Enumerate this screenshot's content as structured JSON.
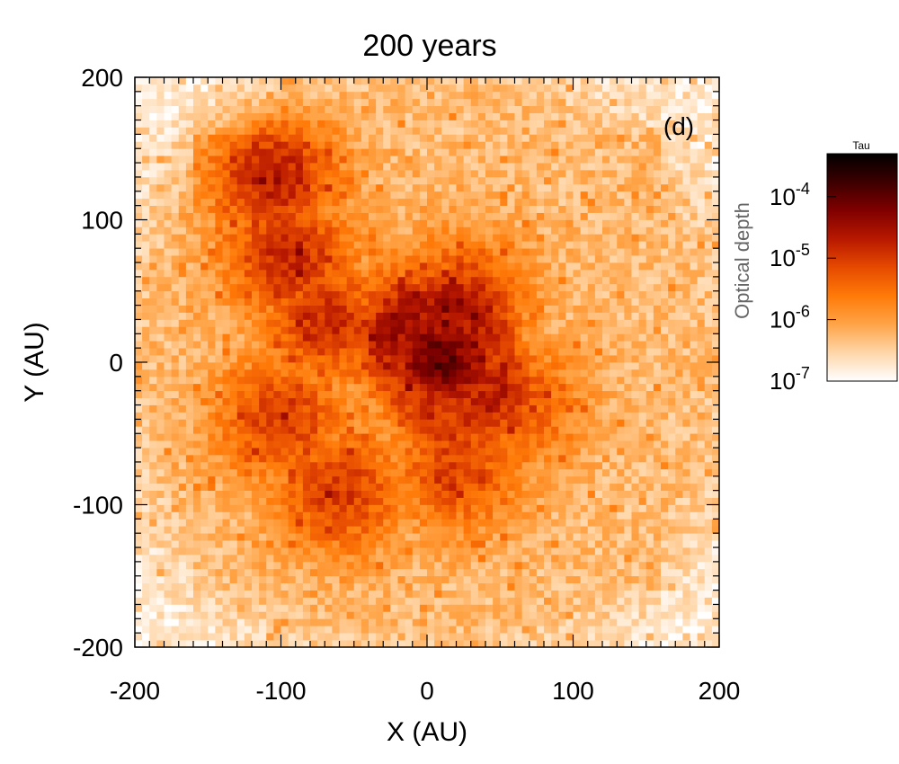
{
  "chart_data": {
    "type": "heatmap",
    "title": "200 years",
    "panel_label": "(d)",
    "xlabel": "X (AU)",
    "ylabel": "Y (AU)",
    "xlim": [
      -200,
      200
    ],
    "ylim": [
      -200,
      200
    ],
    "x_ticks": [
      -200,
      -100,
      0,
      100,
      200
    ],
    "y_ticks": [
      -200,
      -100,
      0,
      100,
      200
    ],
    "colorbar": {
      "title": "Tau",
      "label": "Optical depth",
      "scale": "log",
      "range": [
        1e-07,
        0.0005
      ],
      "ticks": [
        {
          "value": 1e-07,
          "base": "10",
          "exp": "-7"
        },
        {
          "value": 1e-06,
          "base": "10",
          "exp": "-6"
        },
        {
          "value": 1e-05,
          "base": "10",
          "exp": "-5"
        },
        {
          "value": 0.0001,
          "base": "10",
          "exp": "-4"
        }
      ]
    },
    "colormap": [
      "#ffffff",
      "#ffd6a8",
      "#ffa447",
      "#ff7a08",
      "#e64a00",
      "#b81800",
      "#800000",
      "#3c0000",
      "#000000"
    ],
    "grid": false,
    "log10_tau_features": {
      "background": -6.3,
      "central_core": {
        "x": 10,
        "y": 0,
        "peak": -4.0
      },
      "inner_ring_radius": 45,
      "spiral_arm": [
        {
          "x": 25,
          "y": 45,
          "value": -5.0
        },
        {
          "x": -20,
          "y": 30,
          "value": -5.0
        },
        {
          "x": -70,
          "y": 30,
          "value": -4.9
        },
        {
          "x": -95,
          "y": 75,
          "value": -4.8
        },
        {
          "x": -105,
          "y": 130,
          "value": -4.7
        },
        {
          "x": -100,
          "y": -40,
          "value": -5.0
        },
        {
          "x": -60,
          "y": -90,
          "value": -5.0
        },
        {
          "x": 20,
          "y": -75,
          "value": -5.1
        },
        {
          "x": 60,
          "y": -30,
          "value": -5.2
        }
      ],
      "faint_corners": -6.9
    }
  }
}
